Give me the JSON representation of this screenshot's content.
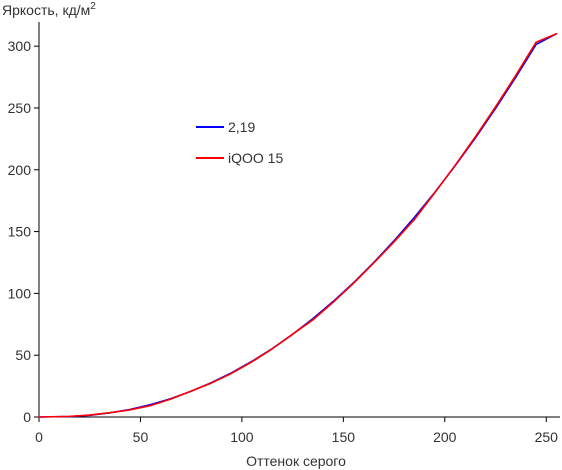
{
  "chart_data": {
    "type": "line",
    "title": "",
    "ylabel": "Яркость, кд/м",
    "ylabel_superscript": "2",
    "xlabel": "Оттенок серого",
    "xlim": [
      0,
      255
    ],
    "ylim": [
      0,
      310
    ],
    "x_ticks": [
      0,
      50,
      100,
      150,
      200,
      250
    ],
    "y_ticks": [
      0,
      50,
      100,
      150,
      200,
      250,
      300
    ],
    "grid": false,
    "legend_position": "upper-middle",
    "series": [
      {
        "name": "2,19",
        "color": "#0000ff",
        "x": [
          0,
          15,
          25,
          35,
          45,
          55,
          65,
          75,
          85,
          95,
          105,
          115,
          125,
          135,
          145,
          155,
          165,
          175,
          185,
          195,
          205,
          215,
          225,
          235,
          245,
          255
        ],
        "y": [
          0,
          0.4,
          1.4,
          3.4,
          6.1,
          10.0,
          14.9,
          20.8,
          27.8,
          35.8,
          45.1,
          55.4,
          66.9,
          79.6,
          93.5,
          108.6,
          125.0,
          142.6,
          161.5,
          181.6,
          203.0,
          225.6,
          249.6,
          274.9,
          301.4,
          310.0
        ]
      },
      {
        "name": "iQOO 15",
        "color": "#ff0000",
        "x": [
          0,
          15,
          25,
          35,
          45,
          55,
          65,
          75,
          85,
          95,
          105,
          115,
          125,
          135,
          145,
          155,
          165,
          175,
          185,
          195,
          205,
          215,
          225,
          235,
          245,
          255
        ],
        "y": [
          0,
          0.5,
          1.6,
          3.5,
          5.8,
          9.2,
          14.6,
          20.9,
          27.5,
          35.4,
          44.7,
          55.2,
          67.0,
          78.6,
          92.9,
          108.2,
          124.6,
          141.7,
          159.8,
          181.3,
          203.4,
          226.5,
          250.9,
          276.4,
          303.2,
          310.0
        ]
      }
    ]
  }
}
